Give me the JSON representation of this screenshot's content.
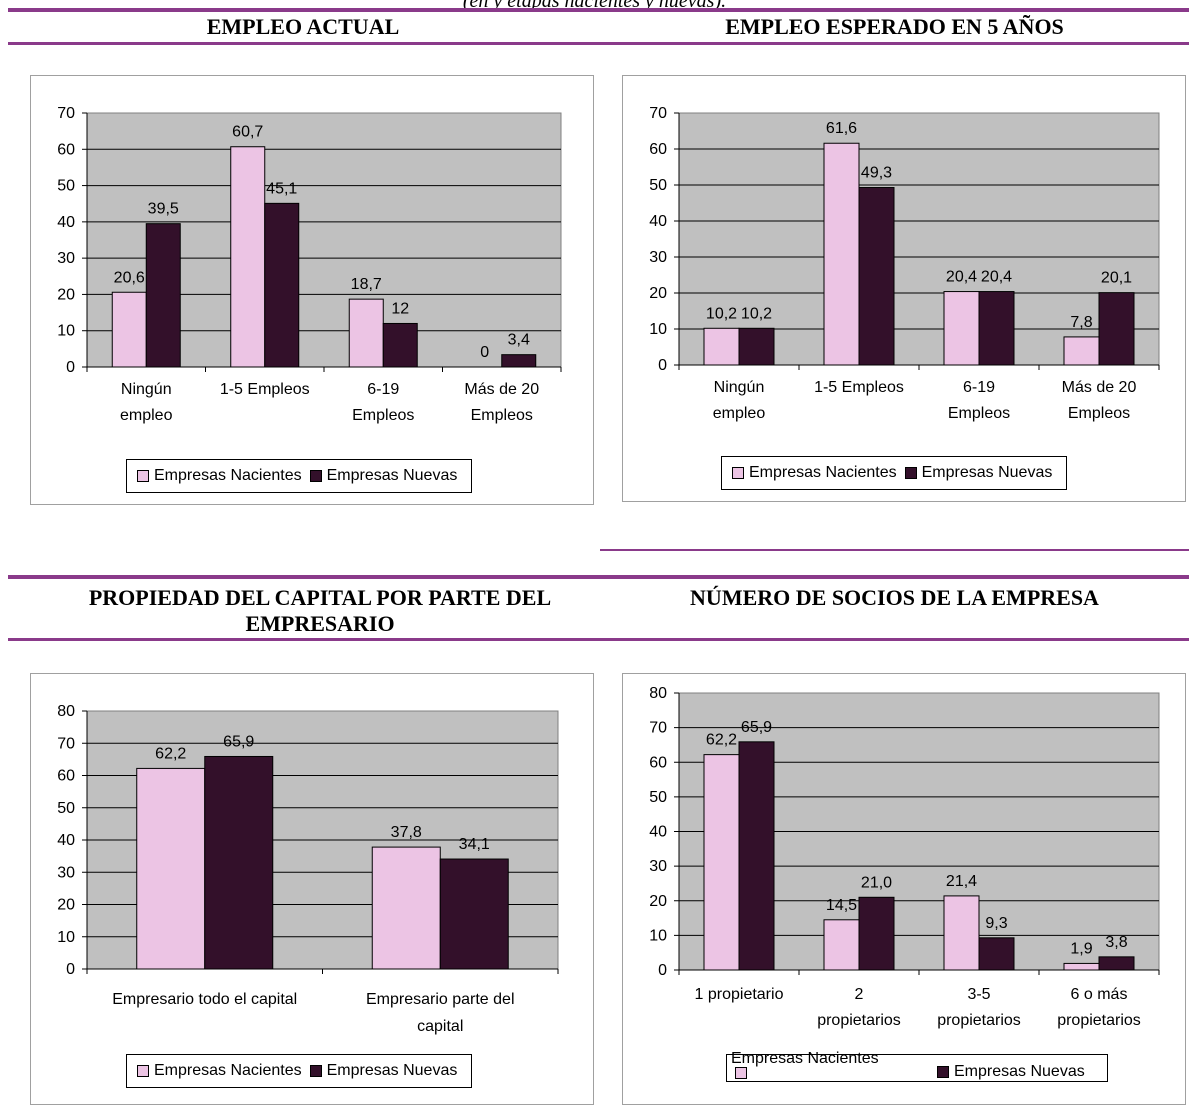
{
  "page": {
    "caption_fragment": "(en y etapas nacientes y nuevas).",
    "section_titles": {
      "s1": "EMPLEO ACTUAL",
      "s2": "EMPLEO ESPERADO EN 5 AÑOS",
      "s3": "PROPIEDAD DEL CAPITAL POR PARTE DEL EMPRESARIO",
      "s4": "NÚMERO DE SOCIOS DE LA EMPRESA"
    }
  },
  "colors": {
    "nacientes": "#ECC4E4",
    "nuevas": "#33102A",
    "plot_bg": "#C0C0C0",
    "rule": "#8A3A8A"
  },
  "legend": {
    "nacientes": "Empresas Nacientes",
    "nuevas": "Empresas Nuevas"
  },
  "chart_data": [
    {
      "type": "bar",
      "categories": [
        [
          "Ningún",
          "empleo"
        ],
        [
          "1-5 Empleos"
        ],
        [
          "6-19",
          "Empleos"
        ],
        [
          "Más de 20",
          "Empleos"
        ]
      ],
      "series": [
        {
          "name": "Empresas Nacientes",
          "values": [
            20.6,
            60.7,
            18.7,
            0
          ],
          "labels": [
            "20,6",
            "60,7",
            "18,7",
            "0"
          ]
        },
        {
          "name": "Empresas Nuevas",
          "values": [
            39.5,
            45.1,
            12,
            3.4
          ],
          "labels": [
            "39,5",
            "45,1",
            "12",
            "3,4"
          ]
        }
      ],
      "ylim": [
        0,
        70
      ],
      "yticks": [
        0,
        10,
        20,
        30,
        40,
        50,
        60,
        70
      ],
      "grid": true,
      "legend": "bottom"
    },
    {
      "type": "bar",
      "categories": [
        [
          "Ningún",
          "empleo"
        ],
        [
          "1-5 Empleos"
        ],
        [
          "6-19",
          "Empleos"
        ],
        [
          "Más de 20",
          "Empleos"
        ]
      ],
      "series": [
        {
          "name": "Empresas Nacientes",
          "values": [
            10.2,
            61.6,
            20.4,
            7.8
          ],
          "labels": [
            "10,2",
            "61,6",
            "20,4",
            "7,8"
          ]
        },
        {
          "name": "Empresas Nuevas",
          "values": [
            10.2,
            49.3,
            20.4,
            20.1
          ],
          "labels": [
            "10,2",
            "49,3",
            "20,4",
            "20,1"
          ]
        }
      ],
      "ylim": [
        0,
        70
      ],
      "yticks": [
        0,
        10,
        20,
        30,
        40,
        50,
        60,
        70
      ],
      "grid": true,
      "legend": "bottom"
    },
    {
      "type": "bar",
      "categories": [
        [
          "Empresario todo el capital"
        ],
        [
          "Empresario parte del",
          "capital"
        ]
      ],
      "series": [
        {
          "name": "Empresas Nacientes",
          "values": [
            62.2,
            37.8
          ],
          "labels": [
            "62,2",
            "37,8"
          ]
        },
        {
          "name": "Empresas Nuevas",
          "values": [
            65.9,
            34.1
          ],
          "labels": [
            "65,9",
            "34,1"
          ]
        }
      ],
      "ylim": [
        0,
        80
      ],
      "yticks": [
        0,
        10,
        20,
        30,
        40,
        50,
        60,
        70,
        80
      ],
      "grid": true,
      "legend": "bottom"
    },
    {
      "type": "bar",
      "categories": [
        [
          "1 propietario"
        ],
        [
          "2",
          "propietarios"
        ],
        [
          "3-5",
          "propietarios"
        ],
        [
          "6 o más",
          "propietarios"
        ]
      ],
      "series": [
        {
          "name": "Empresas Nacientes",
          "values": [
            62.2,
            14.5,
            21.4,
            1.9
          ],
          "labels": [
            "62,2",
            "14,5",
            "21,4",
            "1,9"
          ]
        },
        {
          "name": "Empresas Nuevas",
          "values": [
            65.9,
            21.0,
            9.3,
            3.8
          ],
          "labels": [
            "65,9",
            "21,0",
            "9,3",
            "3,8"
          ]
        }
      ],
      "ylim": [
        0,
        80
      ],
      "yticks": [
        0,
        10,
        20,
        30,
        40,
        50,
        60,
        70,
        80
      ],
      "grid": true,
      "legend": "bottom"
    }
  ]
}
